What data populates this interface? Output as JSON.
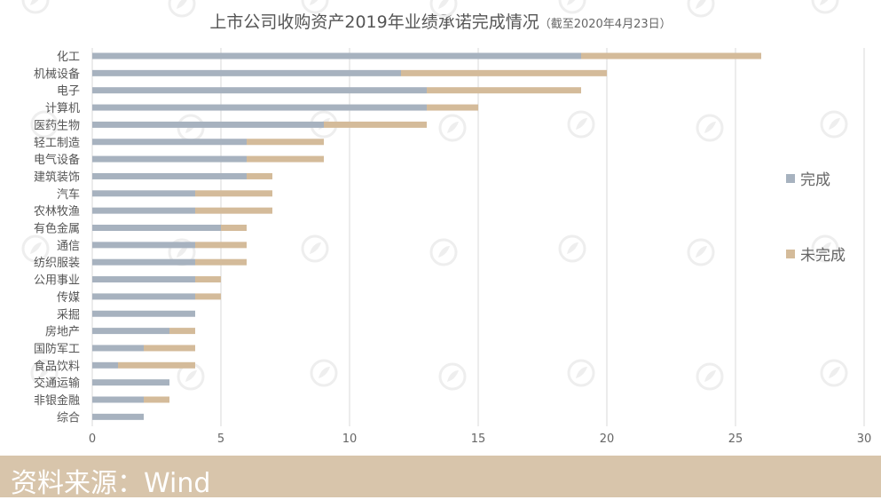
{
  "title": {
    "main": "上市公司收购资产2019年业绩承诺完成情况",
    "sub": "（截至2020年4月23日）"
  },
  "source": "资料来源：Wind",
  "colors": {
    "completed": "#a7b2bf",
    "incomplete": "#d4bb9a",
    "grid": "#d9d9d9",
    "text": "#555555",
    "source_bg": "#d8c5ab"
  },
  "chart_data": {
    "type": "bar",
    "orientation": "horizontal",
    "stacked": true,
    "categories": [
      "化工",
      "机械设备",
      "电子",
      "计算机",
      "医药生物",
      "轻工制造",
      "电气设备",
      "建筑装饰",
      "汽车",
      "农林牧渔",
      "有色金属",
      "通信",
      "纺织服装",
      "公用事业",
      "传媒",
      "采掘",
      "房地产",
      "国防军工",
      "食品饮料",
      "交通运输",
      "非银金融",
      "综合"
    ],
    "series": [
      {
        "name": "完成",
        "values": [
          19,
          12,
          13,
          13,
          9,
          6,
          6,
          6,
          4,
          4,
          5,
          4,
          4,
          4,
          4,
          4,
          3,
          2,
          1,
          3,
          2,
          2
        ]
      },
      {
        "name": "未完成",
        "values": [
          7,
          8,
          6,
          2,
          4,
          3,
          3,
          1,
          3,
          3,
          1,
          2,
          2,
          1,
          1,
          0,
          1,
          2,
          3,
          0,
          1,
          0
        ]
      }
    ],
    "xlim": [
      0,
      30
    ],
    "xticks": [
      0,
      5,
      10,
      15,
      20,
      25,
      30
    ],
    "grid": true,
    "legend_position": "right"
  }
}
